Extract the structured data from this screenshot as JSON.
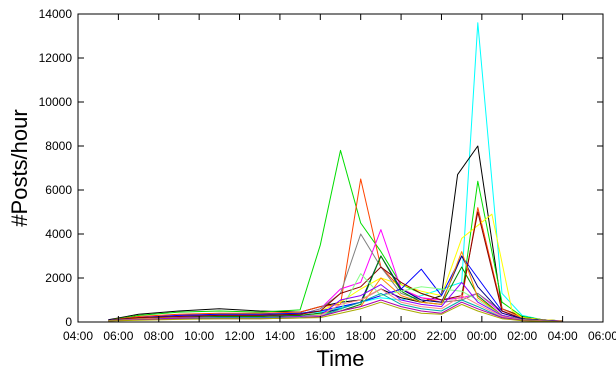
{
  "chart_data": {
    "type": "line",
    "title": "",
    "xlabel": "Time",
    "ylabel": "#Posts/hour",
    "xlim": [
      "04:00",
      "06:00 (next day)"
    ],
    "ylim": [
      0,
      14000
    ],
    "x_ticks": [
      "04:00",
      "06:00",
      "08:00",
      "10:00",
      "12:00",
      "14:00",
      "16:00",
      "18:00",
      "20:00",
      "22:00",
      "00:00",
      "02:00",
      "04:00",
      "06:00"
    ],
    "y_ticks": [
      0,
      2000,
      4000,
      6000,
      8000,
      10000,
      12000,
      14000
    ],
    "grid": false,
    "legend": "none",
    "x_unit": "hours after 04:00",
    "series": [
      {
        "color": "#00ffff",
        "x": [
          1.5,
          3,
          5,
          7,
          9,
          11,
          12,
          13,
          14,
          15,
          16,
          17,
          18,
          19,
          19.8,
          21,
          22,
          23,
          24
        ],
        "y": [
          80,
          200,
          300,
          350,
          350,
          400,
          450,
          650,
          900,
          1100,
          1000,
          1200,
          1500,
          1800,
          13600,
          1300,
          300,
          100,
          50
        ]
      },
      {
        "color": "#000000",
        "x": [
          1.5,
          3,
          5,
          7,
          9,
          11,
          12,
          13,
          14,
          15,
          16,
          17,
          18,
          18.8,
          19.8,
          21,
          22,
          23,
          24
        ],
        "y": [
          100,
          350,
          500,
          600,
          500,
          450,
          700,
          900,
          1000,
          1500,
          1100,
          900,
          1200,
          6700,
          8000,
          600,
          250,
          100,
          50
        ]
      },
      {
        "color": "#00dd00",
        "x": [
          1.5,
          3,
          5,
          7,
          9,
          11,
          12,
          13,
          14,
          15,
          16,
          17,
          18,
          19,
          19.8,
          21,
          22,
          23,
          24
        ],
        "y": [
          80,
          300,
          450,
          500,
          450,
          550,
          3500,
          7800,
          4500,
          3200,
          1700,
          1300,
          1000,
          1100,
          6400,
          900,
          250,
          100,
          50
        ]
      },
      {
        "color": "#ff4400",
        "x": [
          1.5,
          3,
          5,
          7,
          9,
          11,
          12,
          13,
          14,
          15,
          16,
          17,
          18,
          19,
          19.8,
          21,
          22,
          23,
          24
        ],
        "y": [
          80,
          250,
          350,
          400,
          400,
          450,
          700,
          800,
          6500,
          2500,
          1500,
          1100,
          900,
          1000,
          5200,
          600,
          200,
          100,
          50
        ]
      },
      {
        "color": "#ffff00",
        "x": [
          1.5,
          3,
          5,
          7,
          9,
          11,
          12,
          13,
          14,
          15,
          16,
          17,
          18,
          19,
          20.5,
          21.5,
          22,
          23,
          24
        ],
        "y": [
          80,
          200,
          300,
          350,
          350,
          400,
          500,
          900,
          1500,
          2000,
          1700,
          1400,
          1200,
          3800,
          4900,
          500,
          200,
          100,
          50
        ]
      },
      {
        "color": "#ff00ff",
        "x": [
          1.5,
          3,
          5,
          7,
          9,
          11,
          12,
          13,
          14,
          15,
          16,
          17,
          18,
          19,
          19.8,
          21,
          22,
          23,
          24
        ],
        "y": [
          80,
          200,
          300,
          300,
          300,
          350,
          600,
          1500,
          1800,
          4200,
          1500,
          1100,
          1000,
          1100,
          1300,
          400,
          150,
          80,
          40
        ]
      },
      {
        "color": "#808080",
        "x": [
          1.5,
          3,
          5,
          7,
          9,
          11,
          12,
          13,
          14,
          15,
          16,
          17,
          18,
          19,
          19.8,
          21,
          22,
          23,
          24
        ],
        "y": [
          80,
          150,
          250,
          300,
          300,
          350,
          600,
          1300,
          4000,
          2500,
          1300,
          1000,
          900,
          1000,
          1300,
          500,
          150,
          80,
          40
        ]
      },
      {
        "color": "#0000ff",
        "x": [
          1.5,
          3,
          5,
          7,
          9,
          11,
          12,
          13,
          14,
          15,
          16,
          17,
          18,
          19,
          19.8,
          21,
          22,
          23,
          24
        ],
        "y": [
          80,
          200,
          300,
          350,
          350,
          400,
          500,
          700,
          900,
          1200,
          1500,
          2400,
          1200,
          3000,
          2000,
          500,
          150,
          80,
          40
        ]
      },
      {
        "color": "#880000",
        "x": [
          1.5,
          3,
          5,
          7,
          9,
          11,
          12,
          13,
          14,
          15,
          16,
          17,
          18,
          19,
          19.8,
          21,
          22,
          23,
          24
        ],
        "y": [
          80,
          200,
          250,
          300,
          300,
          350,
          500,
          1300,
          1600,
          2500,
          1800,
          1300,
          1000,
          1200,
          5000,
          500,
          150,
          80,
          40
        ]
      },
      {
        "color": "#000088",
        "x": [
          1.5,
          3,
          5,
          7,
          9,
          11,
          12,
          13,
          14,
          15,
          16,
          17,
          18,
          19,
          19.8,
          21,
          22,
          23,
          24
        ],
        "y": [
          80,
          150,
          200,
          250,
          250,
          300,
          400,
          600,
          900,
          3000,
          1500,
          1000,
          900,
          3000,
          1600,
          400,
          150,
          80,
          40
        ]
      },
      {
        "color": "#008800",
        "x": [
          1.5,
          3,
          5,
          7,
          9,
          11,
          12,
          13,
          14,
          15,
          16,
          17,
          18,
          19,
          19.8,
          21,
          22,
          23,
          24
        ],
        "y": [
          60,
          150,
          200,
          250,
          250,
          300,
          400,
          500,
          800,
          3000,
          1400,
          900,
          800,
          2500,
          1200,
          300,
          120,
          60,
          30
        ]
      },
      {
        "color": "#ff8800",
        "x": [
          1.5,
          3,
          5,
          7,
          9,
          11,
          12,
          13,
          14,
          15,
          16,
          17,
          18,
          19,
          19.8,
          21,
          22,
          23,
          24
        ],
        "y": [
          60,
          150,
          200,
          200,
          200,
          250,
          350,
          500,
          700,
          2000,
          1200,
          900,
          800,
          3200,
          1100,
          300,
          100,
          60,
          30
        ]
      },
      {
        "color": "#88ff88",
        "x": [
          1.5,
          3,
          5,
          7,
          9,
          11,
          12,
          13,
          14,
          15,
          16,
          17,
          18,
          19,
          19.8,
          21,
          22,
          23,
          24
        ],
        "y": [
          60,
          120,
          180,
          200,
          200,
          250,
          350,
          500,
          2200,
          1200,
          1400,
          1600,
          1500,
          1400,
          1000,
          300,
          100,
          60,
          30
        ]
      },
      {
        "color": "#8800ff",
        "x": [
          1.5,
          3,
          5,
          7,
          9,
          11,
          12,
          13,
          14,
          15,
          16,
          17,
          18,
          19,
          19.8,
          21,
          22,
          23,
          24
        ],
        "y": [
          60,
          120,
          180,
          200,
          200,
          250,
          300,
          1000,
          1200,
          1700,
          1000,
          800,
          700,
          1800,
          900,
          300,
          100,
          60,
          30
        ]
      },
      {
        "color": "#ff8888",
        "x": [
          1.5,
          3,
          5,
          7,
          9,
          11,
          12,
          13,
          14,
          15,
          16,
          17,
          18,
          19,
          19.8,
          21,
          22,
          23,
          24
        ],
        "y": [
          60,
          120,
          150,
          180,
          180,
          200,
          300,
          800,
          1000,
          1500,
          900,
          700,
          600,
          1200,
          800,
          250,
          100,
          50,
          25
        ]
      },
      {
        "color": "#00aaaa",
        "x": [
          1.5,
          3,
          5,
          7,
          9,
          11,
          12,
          13,
          14,
          15,
          16,
          17,
          18,
          19,
          19.8,
          21,
          22,
          23,
          24
        ],
        "y": [
          50,
          100,
          150,
          180,
          180,
          200,
          250,
          600,
          900,
          1300,
          800,
          600,
          500,
          1000,
          700,
          200,
          80,
          40,
          20
        ]
      },
      {
        "color": "#aa00aa",
        "x": [
          1.5,
          3,
          5,
          7,
          9,
          11,
          12,
          13,
          14,
          15,
          16,
          17,
          18,
          19,
          19.8,
          21,
          22,
          23,
          24
        ],
        "y": [
          50,
          100,
          150,
          150,
          150,
          180,
          250,
          500,
          700,
          1000,
          700,
          500,
          400,
          900,
          600,
          200,
          80,
          40,
          20
        ]
      },
      {
        "color": "#aaaa00",
        "x": [
          1.5,
          3,
          5,
          7,
          9,
          11,
          12,
          13,
          14,
          15,
          16,
          17,
          18,
          19,
          19.8,
          21,
          22,
          23,
          24
        ],
        "y": [
          50,
          80,
          120,
          150,
          150,
          180,
          200,
          400,
          600,
          900,
          600,
          400,
          350,
          800,
          500,
          150,
          60,
          30,
          15
        ]
      }
    ]
  }
}
